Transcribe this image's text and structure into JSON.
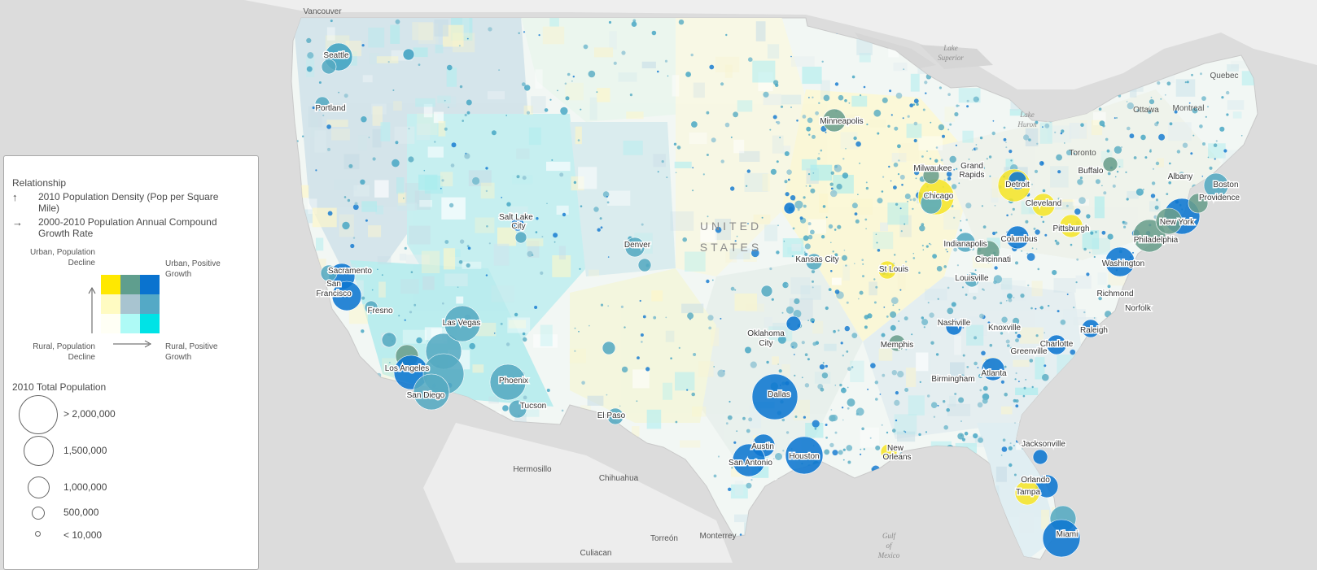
{
  "map": {
    "country_label_line1": "UNITED",
    "country_label_line2": "STATES",
    "water_labels": {
      "lake_superior_1": "Lake",
      "lake_superior_2": "Superior",
      "lake_huron_1": "Lake",
      "lake_huron_2": "Huron",
      "gulf_1": "Gulf",
      "gulf_2": "of",
      "gulf_3": "Mexico"
    },
    "neighbor_labels": {
      "vancouver": "Vancouver",
      "quebec": "Quebec",
      "ottawa": "Ottawa",
      "montreal": "Montreal",
      "toronto": "Toronto",
      "hermosillo": "Hermosillo",
      "chihuahua": "Chihuahua",
      "torreon": "Torreón",
      "monterrey": "Monterrey",
      "culiacan": "Culiacan"
    },
    "cities": [
      {
        "name": "Seattle",
        "pop_class": "> 2,000,000",
        "color": "#3fa2c2"
      },
      {
        "name": "Portland",
        "pop_class": "1,500,000",
        "color": "#55aac2"
      },
      {
        "name": "Sacramento",
        "pop_class": "1,500,000",
        "color": "#0d76d0"
      },
      {
        "name": "San Francisco",
        "pop_class": "> 2,000,000",
        "color": "#0d76d0"
      },
      {
        "name": "Fresno",
        "pop_class": "500,000",
        "color": "#55aac2"
      },
      {
        "name": "Los Angeles",
        "pop_class": "> 2,000,000",
        "color": "#0d76d0"
      },
      {
        "name": "San Diego",
        "pop_class": "> 2,000,000",
        "color": "#55aac2"
      },
      {
        "name": "Las Vegas",
        "pop_class": "> 2,000,000",
        "color": "#55aac2"
      },
      {
        "name": "Phoenix",
        "pop_class": "> 2,000,000",
        "color": "#55aac2"
      },
      {
        "name": "Tucson",
        "pop_class": "1,000,000",
        "color": "#55aac2"
      },
      {
        "name": "Salt Lake City",
        "pop_class": "1,000,000",
        "color": "#55aac2"
      },
      {
        "name": "Denver",
        "pop_class": "> 2,000,000",
        "color": "#55aac2"
      },
      {
        "name": "El Paso",
        "pop_class": "500,000",
        "color": "#55aac2"
      },
      {
        "name": "Minneapolis",
        "pop_class": "> 2,000,000",
        "color": "#6a9e8c"
      },
      {
        "name": "Kansas City",
        "pop_class": "1,500,000",
        "color": "#55aac2"
      },
      {
        "name": "Oklahoma City",
        "pop_class": "1,000,000",
        "color": "#55aac2"
      },
      {
        "name": "Dallas",
        "pop_class": "> 2,000,000",
        "color": "#0d76d0"
      },
      {
        "name": "Austin",
        "pop_class": "1,500,000",
        "color": "#0d76d0"
      },
      {
        "name": "San Antonio",
        "pop_class": "> 2,000,000",
        "color": "#0d76d0"
      },
      {
        "name": "Houston",
        "pop_class": "> 2,000,000",
        "color": "#0d76d0"
      },
      {
        "name": "New Orleans",
        "pop_class": "1,000,000",
        "color": "#f5e52a"
      },
      {
        "name": "Memphis",
        "pop_class": "1,000,000",
        "color": "#6a9e8c"
      },
      {
        "name": "St Louis",
        "pop_class": "> 2,000,000",
        "color": "#f5e52a"
      },
      {
        "name": "Chicago",
        "pop_class": "> 2,000,000",
        "color": "#f5e52a"
      },
      {
        "name": "Milwaukee",
        "pop_class": "1,500,000",
        "color": "#6a9e8c"
      },
      {
        "name": "Grand Rapids",
        "pop_class": "500,000",
        "color": "#55aac2"
      },
      {
        "name": "Detroit",
        "pop_class": "> 2,000,000",
        "color": "#f5e52a"
      },
      {
        "name": "Indianapolis",
        "pop_class": "1,500,000",
        "color": "#55aac2"
      },
      {
        "name": "Cincinnati",
        "pop_class": "> 2,000,000",
        "color": "#6a9e8c"
      },
      {
        "name": "Louisville",
        "pop_class": "1,000,000",
        "color": "#55aac2"
      },
      {
        "name": "Columbus",
        "pop_class": "1,500,000",
        "color": "#0d76d0"
      },
      {
        "name": "Cleveland",
        "pop_class": "> 2,000,000",
        "color": "#f5e52a"
      },
      {
        "name": "Pittsburgh",
        "pop_class": "> 2,000,000",
        "color": "#f5e52a"
      },
      {
        "name": "Buffalo",
        "pop_class": "1,000,000",
        "color": "#f5e52a"
      },
      {
        "name": "Nashville",
        "pop_class": "1,500,000",
        "color": "#0d76d0"
      },
      {
        "name": "Knoxville",
        "pop_class": "500,000",
        "color": "#55aac2"
      },
      {
        "name": "Birmingham",
        "pop_class": "1,000,000",
        "color": "#55aac2"
      },
      {
        "name": "Atlanta",
        "pop_class": "> 2,000,000",
        "color": "#0d76d0"
      },
      {
        "name": "Greenville",
        "pop_class": "500,000",
        "color": "#55aac2"
      },
      {
        "name": "Charlotte",
        "pop_class": "1,500,000",
        "color": "#0d76d0"
      },
      {
        "name": "Raleigh",
        "pop_class": "1,000,000",
        "color": "#0d76d0"
      },
      {
        "name": "Richmond",
        "pop_class": "1,000,000",
        "color": "#55aac2"
      },
      {
        "name": "Norfolk",
        "pop_class": "1,500,000",
        "color": "#55aac2"
      },
      {
        "name": "Washington",
        "pop_class": "> 2,000,000",
        "color": "#0d76d0"
      },
      {
        "name": "Philadelphia",
        "pop_class": "> 2,000,000",
        "color": "#6a9e8c"
      },
      {
        "name": "New York",
        "pop_class": "> 2,000,000",
        "color": "#0d76d0"
      },
      {
        "name": "Albany",
        "pop_class": "500,000",
        "color": "#55aac2"
      },
      {
        "name": "Boston",
        "pop_class": "> 2,000,000",
        "color": "#55aac2"
      },
      {
        "name": "Providence",
        "pop_class": "1,500,000",
        "color": "#6a9e8c"
      },
      {
        "name": "Jacksonville",
        "pop_class": "1,000,000",
        "color": "#0d76d0"
      },
      {
        "name": "Orlando",
        "pop_class": "> 2,000,000",
        "color": "#0d76d0"
      },
      {
        "name": "Tampa",
        "pop_class": "> 2,000,000",
        "color": "#f5e52a"
      },
      {
        "name": "Miami",
        "pop_class": "> 2,000,000",
        "color": "#0d76d0"
      }
    ]
  },
  "legend": {
    "relationship_title": "Relationship",
    "up_arrow": "↑",
    "right_arrow": "→",
    "field_y": "2010 Population Density (Pop per Square Mile)",
    "field_x": "2000-2010 Population Annual Compound Growth Rate",
    "corner_top_left": "Urban, Population Decline",
    "corner_top_right": "Urban, Positive Growth",
    "corner_bottom_left": "Rural, Population Decline",
    "corner_bottom_right": "Rural, Positive Growth",
    "grid_colors": [
      [
        "#ffe800",
        "#5f9e8e",
        "#0a73cf"
      ],
      [
        "#fffbc2",
        "#a8c4d0",
        "#54a9c6"
      ],
      [
        "#fffff5",
        "#aefaf6",
        "#00e3e6"
      ]
    ],
    "size_title": "2010 Total Population",
    "sizes": [
      {
        "label": "> 2,000,000",
        "value": 2000000
      },
      {
        "label": "1,500,000",
        "value": 1500000
      },
      {
        "label": "1,000,000",
        "value": 1000000
      },
      {
        "label": "500,000",
        "value": 500000
      },
      {
        "label": "< 10,000",
        "value": 10000
      }
    ]
  },
  "colors": {
    "background": "#dcdcdc",
    "water": "#e6e6e6",
    "land_base": "#f2f7f4",
    "neighbor_land": "#f0f0f0"
  }
}
